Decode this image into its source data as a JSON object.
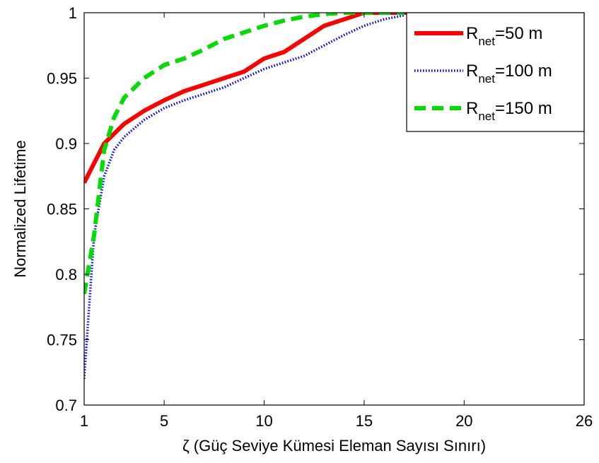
{
  "chart_data": {
    "type": "line",
    "title": "",
    "xlabel": "ζ (Güç Seviye Kümesi Eleman Sayısı Sınırı)",
    "ylabel": "Normalized Lifetime",
    "xlim": [
      1,
      26
    ],
    "ylim": [
      0.7,
      1.0
    ],
    "xticks": [
      1,
      5,
      10,
      15,
      20,
      26
    ],
    "xtick_labels": [
      "1",
      "5",
      "10",
      "15",
      "20",
      "26"
    ],
    "yticks": [
      0.7,
      0.75,
      0.8,
      0.85,
      0.9,
      0.95,
      1.0
    ],
    "ytick_labels": [
      "0.7",
      "0.75",
      "0.8",
      "0.85",
      "0.9",
      "0.95",
      "1"
    ],
    "grid": false,
    "legend_position": "top-right",
    "series": [
      {
        "name": "R_net=50 m",
        "legend_main": "R",
        "legend_sub": "net",
        "legend_rest": "=50 m",
        "color": "#ff0000",
        "style": "solid",
        "x": [
          1,
          2,
          3,
          4,
          5,
          6,
          7,
          8,
          9,
          10,
          11,
          12,
          13,
          14,
          15,
          16,
          17,
          18
        ],
        "values": [
          0.87,
          0.9,
          0.915,
          0.925,
          0.933,
          0.94,
          0.945,
          0.95,
          0.955,
          0.965,
          0.97,
          0.98,
          0.99,
          0.995,
          1.0,
          1.0,
          1.0,
          1.0
        ]
      },
      {
        "name": "R_net=100 m",
        "legend_main": "R",
        "legend_sub": "net",
        "legend_rest": "=100 m",
        "color": "#0000ff",
        "style": "dotted",
        "x": [
          1,
          1.5,
          2,
          2.5,
          3,
          4,
          5,
          6,
          7,
          8,
          9,
          10,
          11,
          12,
          13,
          14,
          15,
          16,
          17
        ],
        "values": [
          0.72,
          0.83,
          0.875,
          0.895,
          0.905,
          0.918,
          0.927,
          0.933,
          0.938,
          0.943,
          0.95,
          0.957,
          0.962,
          0.967,
          0.975,
          0.983,
          0.99,
          0.995,
          0.998
        ]
      },
      {
        "name": "R_net=150 m",
        "legend_main": "R",
        "legend_sub": "net",
        "legend_rest": "=150 m",
        "color": "#00dd00",
        "style": "dashed",
        "x": [
          1,
          1.5,
          2,
          2.5,
          3,
          4,
          5,
          6,
          7,
          8,
          9,
          10,
          11,
          12,
          13,
          14,
          15,
          16,
          17
        ],
        "values": [
          0.785,
          0.83,
          0.895,
          0.92,
          0.935,
          0.95,
          0.96,
          0.965,
          0.972,
          0.98,
          0.985,
          0.99,
          0.994,
          0.997,
          0.999,
          1.0,
          1.0,
          1.0,
          1.0
        ]
      }
    ]
  }
}
